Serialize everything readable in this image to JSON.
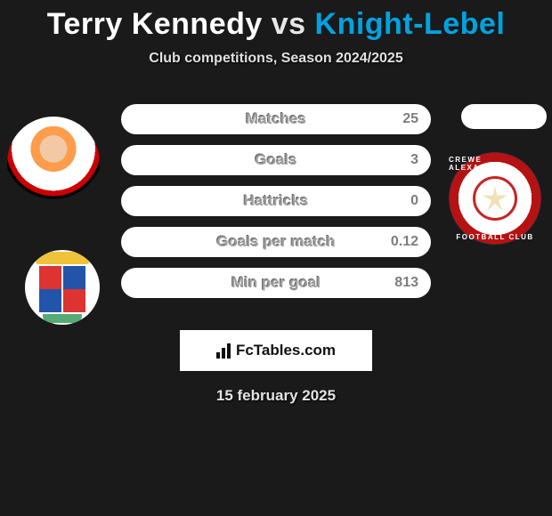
{
  "title": {
    "player1": "Terry Kennedy",
    "vs": "vs",
    "player2": "Knight-Lebel",
    "p1_color": "#ffffff",
    "p2_color": "#00a2e0"
  },
  "subtitle": "Club competitions, Season 2024/2025",
  "club2_ring_top": "CREWE ALEXANDRA",
  "club2_ring_bottom": "FOOTBALL CLUB",
  "bars": [
    {
      "label": "Matches",
      "left": "",
      "right": "25",
      "left_pct": 0,
      "right_pct": 0
    },
    {
      "label": "Goals",
      "left": "",
      "right": "3",
      "left_pct": 0,
      "right_pct": 0
    },
    {
      "label": "Hattricks",
      "left": "",
      "right": "0",
      "left_pct": 0,
      "right_pct": 0
    },
    {
      "label": "Goals per match",
      "left": "",
      "right": "0.12",
      "left_pct": 0,
      "right_pct": 0
    },
    {
      "label": "Min per goal",
      "left": "",
      "right": "813",
      "left_pct": 0,
      "right_pct": 0
    }
  ],
  "bar_style": {
    "bg": "#ffffff",
    "left_fill": "#ffffff",
    "right_fill": "#1aa2de",
    "label_color": "#9e9e9e",
    "right_val_color": "#7e7e7e"
  },
  "logo_text": "FcTables.com",
  "date": "15 february 2025",
  "colors": {
    "page_bg": "#1a1a1a"
  }
}
